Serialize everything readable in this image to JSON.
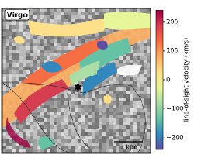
{
  "chart_data": {
    "type": "image",
    "panel_label": "Virgo",
    "scale_bar_label": "1 kpc",
    "colorbar_label": "line-of-sight velocity (km/s)",
    "clim": [
      -240,
      240
    ],
    "colorbar_ticks": [
      200,
      100,
      0,
      {
        "value": -100,
        "label": "−100"
      },
      {
        "value": -200,
        "label": "−200"
      }
    ],
    "colormap": [
      "#5e4fa2",
      "#3288bd",
      "#66c2a5",
      "#abdda4",
      "#e6f598",
      "#fee08b",
      "#fdae61",
      "#f46d43",
      "#d53e4f",
      "#9e0142"
    ]
  }
}
